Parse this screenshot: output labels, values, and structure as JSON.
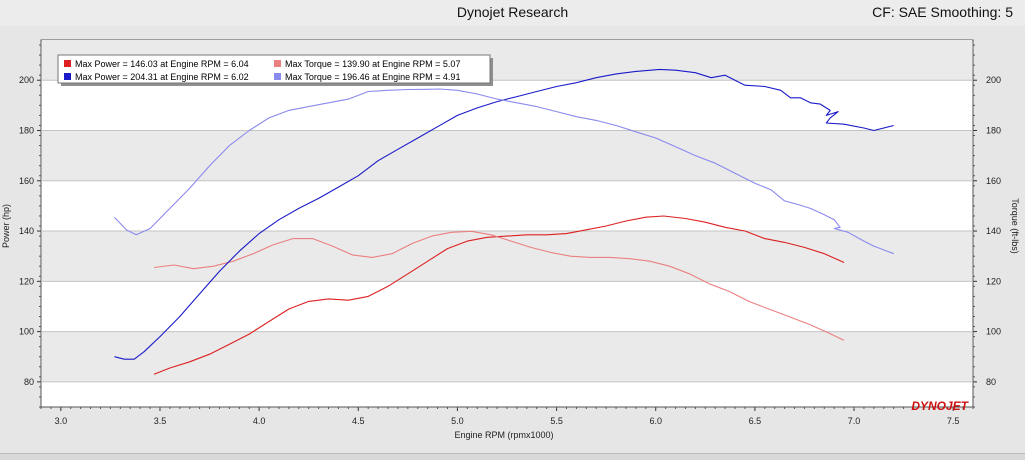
{
  "header": {
    "title": "Dynojet Research",
    "cf_label": "CF: SAE Smoothing: 5"
  },
  "logo": {
    "text": "DYNOJET",
    "color": "#cc1111"
  },
  "chart_data": {
    "type": "line",
    "xlabel": "Engine RPM (rpmx1000)",
    "ylabel_left": "Power (hp)",
    "ylabel_right": "Torque (ft-lbs)",
    "xlim": [
      2.9,
      7.6
    ],
    "ylim": [
      70,
      216
    ],
    "grid": true,
    "legend_position": "top-left",
    "x_ticks": [
      "3.0",
      "3.5",
      "4.0",
      "4.5",
      "5.0",
      "5.5",
      "6.0",
      "6.5",
      "7.0",
      "7.5"
    ],
    "y_ticks_left": [
      "80",
      "100",
      "120",
      "140",
      "160",
      "180",
      "200"
    ],
    "y_ticks_right": [
      "80",
      "100",
      "120",
      "140",
      "160",
      "180",
      "200"
    ],
    "series": [
      {
        "name": "Max Power = 146.03 at Engine RPM = 6.04",
        "color": "#dd2020",
        "points": [
          [
            3.47,
            83
          ],
          [
            3.55,
            85.5
          ],
          [
            3.65,
            88
          ],
          [
            3.75,
            91
          ],
          [
            3.85,
            95
          ],
          [
            3.95,
            99
          ],
          [
            4.05,
            104
          ],
          [
            4.15,
            109
          ],
          [
            4.25,
            112
          ],
          [
            4.35,
            113
          ],
          [
            4.45,
            112.5
          ],
          [
            4.55,
            114
          ],
          [
            4.65,
            118
          ],
          [
            4.75,
            123
          ],
          [
            4.85,
            128
          ],
          [
            4.95,
            133
          ],
          [
            5.05,
            136
          ],
          [
            5.15,
            137.5
          ],
          [
            5.25,
            138
          ],
          [
            5.35,
            138.5
          ],
          [
            5.45,
            138.5
          ],
          [
            5.55,
            139
          ],
          [
            5.65,
            140.5
          ],
          [
            5.75,
            142
          ],
          [
            5.85,
            144
          ],
          [
            5.95,
            145.5
          ],
          [
            6.04,
            146
          ],
          [
            6.15,
            145
          ],
          [
            6.25,
            143.5
          ],
          [
            6.35,
            141.5
          ],
          [
            6.45,
            140
          ],
          [
            6.55,
            137
          ],
          [
            6.65,
            135.5
          ],
          [
            6.75,
            133.5
          ],
          [
            6.85,
            131
          ],
          [
            6.95,
            127.5
          ]
        ]
      },
      {
        "name": "Max Torque = 139.90 at Engine RPM = 5.07",
        "color": "#ea8080",
        "points": [
          [
            3.47,
            125.5
          ],
          [
            3.57,
            126.5
          ],
          [
            3.67,
            125
          ],
          [
            3.77,
            126
          ],
          [
            3.87,
            128
          ],
          [
            3.97,
            131
          ],
          [
            4.07,
            134.5
          ],
          [
            4.17,
            137
          ],
          [
            4.27,
            137
          ],
          [
            4.37,
            134
          ],
          [
            4.47,
            130.5
          ],
          [
            4.57,
            129.5
          ],
          [
            4.67,
            131
          ],
          [
            4.77,
            135
          ],
          [
            4.87,
            138
          ],
          [
            4.97,
            139.5
          ],
          [
            5.07,
            139.9
          ],
          [
            5.17,
            138.5
          ],
          [
            5.27,
            136
          ],
          [
            5.37,
            133.5
          ],
          [
            5.47,
            131.5
          ],
          [
            5.57,
            130
          ],
          [
            5.67,
            129.5
          ],
          [
            5.77,
            129.5
          ],
          [
            5.87,
            129
          ],
          [
            5.97,
            128
          ],
          [
            6.07,
            126
          ],
          [
            6.17,
            123
          ],
          [
            6.27,
            119
          ],
          [
            6.37,
            116
          ],
          [
            6.47,
            112
          ],
          [
            6.57,
            109
          ],
          [
            6.67,
            106
          ],
          [
            6.77,
            103
          ],
          [
            6.87,
            99.5
          ],
          [
            6.95,
            96.5
          ]
        ]
      },
      {
        "name": "Max Power = 204.31 at Engine RPM = 6.02",
        "color": "#1a1ac8",
        "points": [
          [
            3.27,
            90
          ],
          [
            3.32,
            89
          ],
          [
            3.37,
            89
          ],
          [
            3.42,
            92
          ],
          [
            3.5,
            98
          ],
          [
            3.6,
            106
          ],
          [
            3.7,
            115
          ],
          [
            3.8,
            124
          ],
          [
            3.9,
            132
          ],
          [
            4.0,
            139
          ],
          [
            4.1,
            144.5
          ],
          [
            4.2,
            149
          ],
          [
            4.3,
            153
          ],
          [
            4.4,
            157.5
          ],
          [
            4.5,
            162
          ],
          [
            4.6,
            168
          ],
          [
            4.7,
            172.5
          ],
          [
            4.8,
            177
          ],
          [
            4.9,
            181.5
          ],
          [
            5.0,
            186
          ],
          [
            5.1,
            189
          ],
          [
            5.2,
            191.5
          ],
          [
            5.3,
            193.5
          ],
          [
            5.4,
            195.5
          ],
          [
            5.5,
            197.5
          ],
          [
            5.6,
            199
          ],
          [
            5.7,
            201
          ],
          [
            5.8,
            202.5
          ],
          [
            5.9,
            203.5
          ],
          [
            6.02,
            204.3
          ],
          [
            6.1,
            204
          ],
          [
            6.2,
            203
          ],
          [
            6.28,
            201
          ],
          [
            6.35,
            202
          ],
          [
            6.4,
            200
          ],
          [
            6.45,
            198
          ],
          [
            6.55,
            197.5
          ],
          [
            6.63,
            196
          ],
          [
            6.68,
            193
          ],
          [
            6.73,
            193
          ],
          [
            6.78,
            191
          ],
          [
            6.83,
            190.5
          ],
          [
            6.88,
            188
          ],
          [
            6.86,
            186
          ],
          [
            6.92,
            187.5
          ],
          [
            6.88,
            185
          ],
          [
            6.86,
            183
          ],
          [
            6.95,
            182.5
          ],
          [
            7.05,
            181
          ],
          [
            7.1,
            180
          ],
          [
            7.2,
            182
          ]
        ]
      },
      {
        "name": "Max Torque = 196.46 at Engine RPM = 4.91",
        "color": "#8a8aee",
        "points": [
          [
            3.27,
            145.5
          ],
          [
            3.33,
            140.5
          ],
          [
            3.38,
            138.5
          ],
          [
            3.45,
            141
          ],
          [
            3.55,
            149
          ],
          [
            3.65,
            157
          ],
          [
            3.75,
            166
          ],
          [
            3.85,
            174
          ],
          [
            3.95,
            180
          ],
          [
            4.05,
            185
          ],
          [
            4.15,
            188
          ],
          [
            4.25,
            189.5
          ],
          [
            4.35,
            191
          ],
          [
            4.45,
            192.5
          ],
          [
            4.55,
            195.5
          ],
          [
            4.65,
            196
          ],
          [
            4.75,
            196.3
          ],
          [
            4.85,
            196.4
          ],
          [
            4.91,
            196.5
          ],
          [
            5.0,
            196
          ],
          [
            5.1,
            194.5
          ],
          [
            5.2,
            192.5
          ],
          [
            5.3,
            191
          ],
          [
            5.4,
            189.5
          ],
          [
            5.5,
            187.5
          ],
          [
            5.6,
            185.5
          ],
          [
            5.7,
            184
          ],
          [
            5.8,
            182
          ],
          [
            5.9,
            179.5
          ],
          [
            6.0,
            177
          ],
          [
            6.1,
            173.5
          ],
          [
            6.2,
            170
          ],
          [
            6.3,
            167
          ],
          [
            6.4,
            163
          ],
          [
            6.5,
            159
          ],
          [
            6.58,
            156.5
          ],
          [
            6.65,
            152
          ],
          [
            6.72,
            150.5
          ],
          [
            6.78,
            149
          ],
          [
            6.85,
            146.5
          ],
          [
            6.9,
            144.5
          ],
          [
            6.93,
            141.5
          ],
          [
            6.9,
            141
          ],
          [
            6.97,
            139.5
          ],
          [
            7.05,
            136
          ],
          [
            7.1,
            134
          ],
          [
            7.2,
            131
          ]
        ]
      }
    ]
  }
}
